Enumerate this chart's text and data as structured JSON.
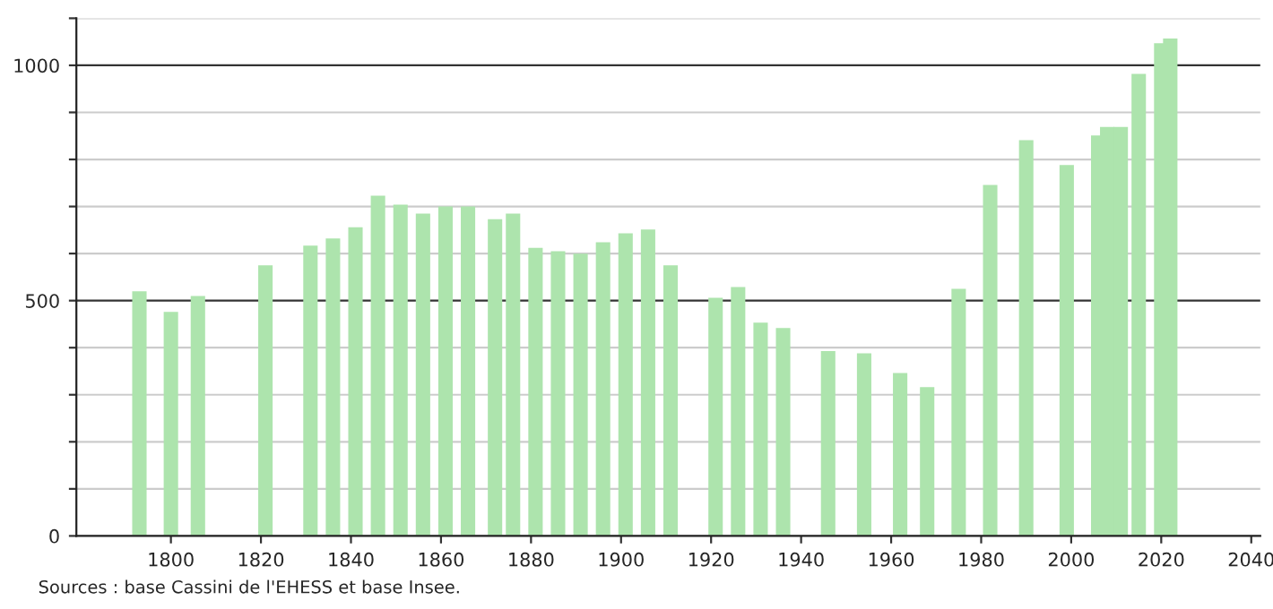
{
  "chart_data": {
    "type": "bar",
    "x": [
      1793,
      1800,
      1806,
      1821,
      1831,
      1836,
      1841,
      1846,
      1851,
      1856,
      1861,
      1866,
      1872,
      1876,
      1881,
      1886,
      1891,
      1896,
      1901,
      1906,
      1911,
      1921,
      1926,
      1931,
      1936,
      1946,
      1954,
      1962,
      1968,
      1975,
      1982,
      1990,
      1999,
      2006,
      2008,
      2011,
      2015,
      2020,
      2022
    ],
    "values": [
      520,
      476,
      510,
      575,
      617,
      632,
      656,
      723,
      704,
      685,
      700,
      700,
      673,
      685,
      612,
      605,
      600,
      624,
      643,
      651,
      575,
      506,
      529,
      453,
      442,
      393,
      388,
      346,
      316,
      525,
      746,
      841,
      788,
      851,
      869,
      869,
      982,
      1047,
      1057
    ],
    "color": "#ade4ad",
    "xlim": [
      1779,
      2042
    ],
    "xticks": [
      1800,
      1820,
      1840,
      1860,
      1880,
      1900,
      1920,
      1940,
      1960,
      1980,
      2000,
      2020,
      2040
    ],
    "ylim": [
      0,
      1100
    ],
    "yticks": [
      0,
      {
        "value": 100,
        "label": null
      },
      {
        "value": 200,
        "label": null
      },
      {
        "value": 300,
        "label": null
      },
      {
        "value": 400,
        "label": null
      },
      500,
      {
        "value": 600,
        "label": null
      },
      {
        "value": 700,
        "label": null
      },
      {
        "value": 800,
        "label": null
      },
      {
        "value": 900,
        "label": null
      },
      1000,
      {
        "value": 1100,
        "label": null
      }
    ],
    "grid": "y",
    "annotations": [
      "Sources : base Cassini de l'EHESS et base Insee."
    ]
  }
}
